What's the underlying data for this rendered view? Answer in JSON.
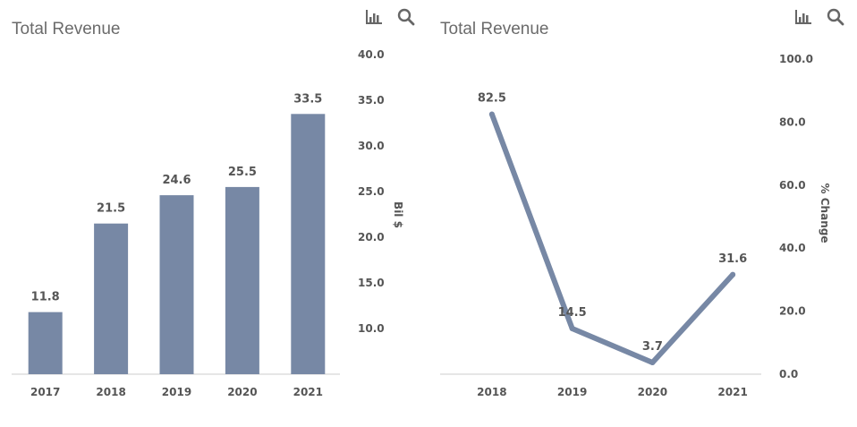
{
  "colors": {
    "series": "#7788a5",
    "axis": "#cccccc",
    "text": "#555555",
    "title": "#6b6b6b"
  },
  "icons": {
    "chart_toggle": "bar-chart-icon",
    "zoom": "search-icon"
  },
  "chart_data": [
    {
      "type": "bar",
      "title": "Total Revenue",
      "categories": [
        "2017",
        "2018",
        "2019",
        "2020",
        "2021"
      ],
      "values": [
        11.8,
        21.5,
        24.6,
        25.5,
        33.5
      ],
      "data_labels": [
        "11.8",
        "21.5",
        "24.6",
        "25.5",
        "33.5"
      ],
      "ylabel": "Bil $",
      "y_axis_side": "right",
      "ylim": [
        5,
        40
      ],
      "yticks": [
        "40.0",
        "35.0",
        "30.0",
        "25.0",
        "20.0",
        "15.0",
        "10.0"
      ],
      "grid": false,
      "legend": "none"
    },
    {
      "type": "line",
      "title": "Total Revenue",
      "categories": [
        "2018",
        "2019",
        "2020",
        "2021"
      ],
      "values": [
        82.5,
        14.5,
        3.7,
        31.6
      ],
      "data_labels": [
        "82.5",
        "14.5",
        "3.7",
        "31.6"
      ],
      "ylabel": "% Change",
      "y_axis_side": "right",
      "ylim": [
        0,
        100
      ],
      "yticks": [
        "100.0",
        "80.0",
        "60.0",
        "40.0",
        "20.0",
        "0.0"
      ],
      "grid": false,
      "legend": "none"
    }
  ]
}
